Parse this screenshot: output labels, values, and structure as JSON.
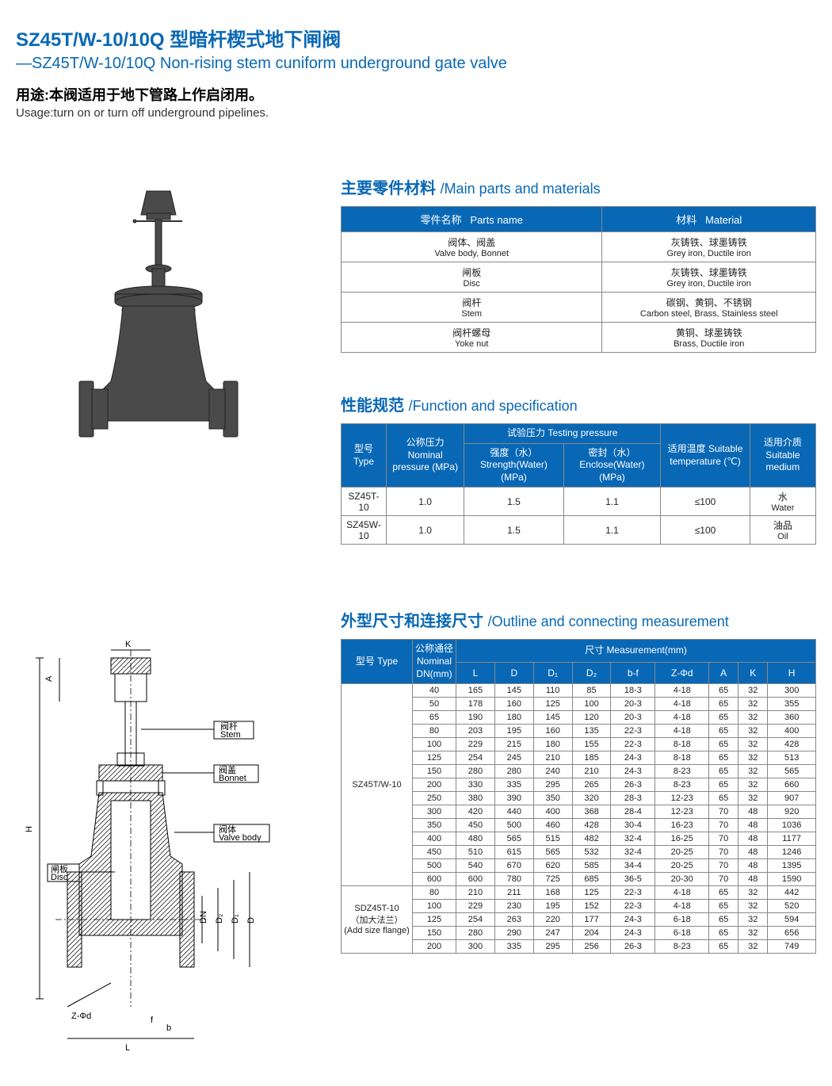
{
  "colors": {
    "primary": "#0968b5",
    "header_bg": "#0968b5"
  },
  "header": {
    "title_cn": "SZ45T/W-10/10Q 型暗杆楔式地下闸阀",
    "title_en": "—SZ45T/W-10/10Q Non-rising stem cuniform underground gate valve",
    "usage_cn": "用途:本阀适用于地下管路上作启闭用。",
    "usage_en": "Usage:turn on or turn off underground pipelines."
  },
  "materials": {
    "title_cn": "主要零件材料",
    "title_en": "/Main parts and materials",
    "col1_cn": "零件名称",
    "col1_en": "Parts name",
    "col2_cn": "材料",
    "col2_en": "Material",
    "rows": [
      {
        "part_cn": "阀体、阀盖",
        "part_en": "Valve body, Bonnet",
        "mat_cn": "灰铸铁、球墨铸铁",
        "mat_en": "Grey iron, Ductile iron"
      },
      {
        "part_cn": "闸板",
        "part_en": "Disc",
        "mat_cn": "灰铸铁、球墨铸铁",
        "mat_en": "Grey iron, Ductile iron"
      },
      {
        "part_cn": "阀杆",
        "part_en": "Stem",
        "mat_cn": "碳钢、黄铜、不锈钢",
        "mat_en": "Carbon steel, Brass, Stainless steel"
      },
      {
        "part_cn": "阀杆螺母",
        "part_en": "Yoke nut",
        "mat_cn": "黄铜、球墨铸铁",
        "mat_en": "Brass, Ductile iron"
      }
    ]
  },
  "spec": {
    "title_cn": "性能规范",
    "title_en": "/Function and specification",
    "h_type_cn": "型号",
    "h_type_en": "Type",
    "h_np_cn": "公称压力",
    "h_np_en": "Nominal pressure (MPa)",
    "h_test_cn": "试验压力",
    "h_test_en": "Testing pressure",
    "h_str_cn": "强度（水）",
    "h_str_en": "Strength(Water) (MPa)",
    "h_enc_cn": "密封（水）",
    "h_enc_en": "Enclose(Water) (MPa)",
    "h_temp_cn": "适用温度",
    "h_temp_en": "Suitable temperature (℃)",
    "h_med_cn": "适用介质",
    "h_med_en": "Suitable medium",
    "rows": [
      {
        "type": "SZ45T-10",
        "np": "1.0",
        "str": "1.5",
        "enc": "1.1",
        "temp": "≤100",
        "med_cn": "水",
        "med_en": "Water"
      },
      {
        "type": "SZ45W-10",
        "np": "1.0",
        "str": "1.5",
        "enc": "1.1",
        "temp": "≤100",
        "med_cn": "油品",
        "med_en": "Oil"
      }
    ]
  },
  "dims": {
    "title_cn": "外型尺寸和连接尺寸",
    "title_en": "/Outline and connecting measurement",
    "h_type_cn": "型号",
    "h_type_en": "Type",
    "h_dn_cn": "公称通径",
    "h_dn_en": "Nominal DN(mm)",
    "h_meas_cn": "尺寸",
    "h_meas_en": "Measurement(mm)",
    "cols": [
      "L",
      "D",
      "D₁",
      "D₂",
      "b-f",
      "Z-Φd",
      "A",
      "K",
      "H"
    ],
    "group1_type": "SZ45T/W-10",
    "group1_rows": [
      [
        "40",
        "165",
        "145",
        "110",
        "85",
        "18-3",
        "4-18",
        "65",
        "32",
        "300"
      ],
      [
        "50",
        "178",
        "160",
        "125",
        "100",
        "20-3",
        "4-18",
        "65",
        "32",
        "355"
      ],
      [
        "65",
        "190",
        "180",
        "145",
        "120",
        "20-3",
        "4-18",
        "65",
        "32",
        "360"
      ],
      [
        "80",
        "203",
        "195",
        "160",
        "135",
        "22-3",
        "4-18",
        "65",
        "32",
        "400"
      ],
      [
        "100",
        "229",
        "215",
        "180",
        "155",
        "22-3",
        "8-18",
        "65",
        "32",
        "428"
      ],
      [
        "125",
        "254",
        "245",
        "210",
        "185",
        "24-3",
        "8-18",
        "65",
        "32",
        "513"
      ],
      [
        "150",
        "280",
        "280",
        "240",
        "210",
        "24-3",
        "8-23",
        "65",
        "32",
        "565"
      ],
      [
        "200",
        "330",
        "335",
        "295",
        "265",
        "26-3",
        "8-23",
        "65",
        "32",
        "660"
      ],
      [
        "250",
        "380",
        "390",
        "350",
        "320",
        "28-3",
        "12-23",
        "65",
        "32",
        "907"
      ],
      [
        "300",
        "420",
        "440",
        "400",
        "368",
        "28-4",
        "12-23",
        "70",
        "48",
        "920"
      ],
      [
        "350",
        "450",
        "500",
        "460",
        "428",
        "30-4",
        "16-23",
        "70",
        "48",
        "1036"
      ],
      [
        "400",
        "480",
        "565",
        "515",
        "482",
        "32-4",
        "16-25",
        "70",
        "48",
        "1177"
      ],
      [
        "450",
        "510",
        "615",
        "565",
        "532",
        "32-4",
        "20-25",
        "70",
        "48",
        "1246"
      ],
      [
        "500",
        "540",
        "670",
        "620",
        "585",
        "34-4",
        "20-25",
        "70",
        "48",
        "1395"
      ],
      [
        "600",
        "600",
        "780",
        "725",
        "685",
        "36-5",
        "20-30",
        "70",
        "48",
        "1590"
      ]
    ],
    "group2_type_l1": "SDZ45T-10",
    "group2_type_l2": "（加大法兰）",
    "group2_type_l3": "(Add size flange)",
    "group2_rows": [
      [
        "80",
        "210",
        "211",
        "168",
        "125",
        "22-3",
        "4-18",
        "65",
        "32",
        "442"
      ],
      [
        "100",
        "229",
        "230",
        "195",
        "152",
        "22-3",
        "4-18",
        "65",
        "32",
        "520"
      ],
      [
        "125",
        "254",
        "263",
        "220",
        "177",
        "24-3",
        "6-18",
        "65",
        "32",
        "594"
      ],
      [
        "150",
        "280",
        "290",
        "247",
        "204",
        "24-3",
        "6-18",
        "65",
        "32",
        "656"
      ],
      [
        "200",
        "300",
        "335",
        "295",
        "256",
        "26-3",
        "8-23",
        "65",
        "32",
        "749"
      ]
    ]
  },
  "diagram_labels": {
    "stem_cn": "阀杆",
    "stem_en": "Stem",
    "bonnet_cn": "阀盖",
    "bonnet_en": "Bonnet",
    "body_cn": "阀体",
    "body_en": "Valve body",
    "disc_cn": "闸板",
    "disc_en": "Disc",
    "k": "K",
    "a": "A",
    "h": "H",
    "dn": "DN",
    "d2": "D₂",
    "d1": "D₁",
    "d": "D",
    "zphi": "Z-Φd",
    "f": "f",
    "b": "b",
    "l": "L"
  }
}
